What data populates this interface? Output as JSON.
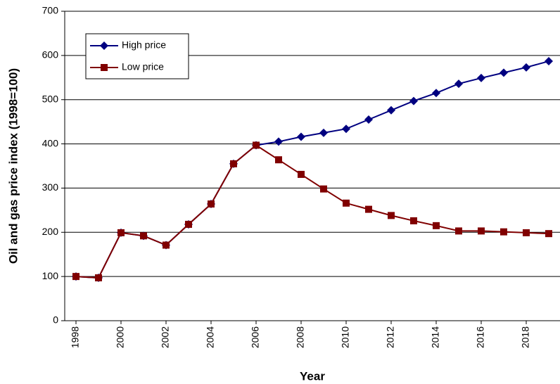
{
  "chart_data": {
    "type": "line",
    "x_label": "Year",
    "y_label": "Oil and gas price index (1998=100)",
    "x": [
      1998,
      1999,
      2000,
      2001,
      2002,
      2003,
      2004,
      2005,
      2006,
      2007,
      2008,
      2009,
      2010,
      2011,
      2012,
      2013,
      2014,
      2015,
      2016,
      2017,
      2018,
      2019
    ],
    "series": [
      {
        "name": "High price",
        "color": "#000080",
        "marker": "diamond",
        "values": [
          100,
          97,
          199,
          192,
          171,
          218,
          264,
          355,
          397,
          405,
          416,
          425,
          434,
          455,
          476,
          497,
          515,
          536,
          549,
          561,
          573,
          587
        ]
      },
      {
        "name": "Low price",
        "color": "#800000",
        "marker": "square",
        "values": [
          100,
          97,
          199,
          192,
          171,
          218,
          264,
          355,
          397,
          364,
          331,
          298,
          266,
          252,
          238,
          226,
          215,
          203,
          203,
          201,
          199,
          197
        ]
      }
    ],
    "xlim": [
      1997.5,
      2019.5
    ],
    "xticks": [
      1998,
      2000,
      2002,
      2004,
      2006,
      2008,
      2010,
      2012,
      2014,
      2016,
      2018
    ],
    "ylim": [
      0,
      700
    ],
    "yticks": [
      0,
      100,
      200,
      300,
      400,
      500,
      600,
      700
    ],
    "grid": true,
    "legend": "upper left"
  }
}
